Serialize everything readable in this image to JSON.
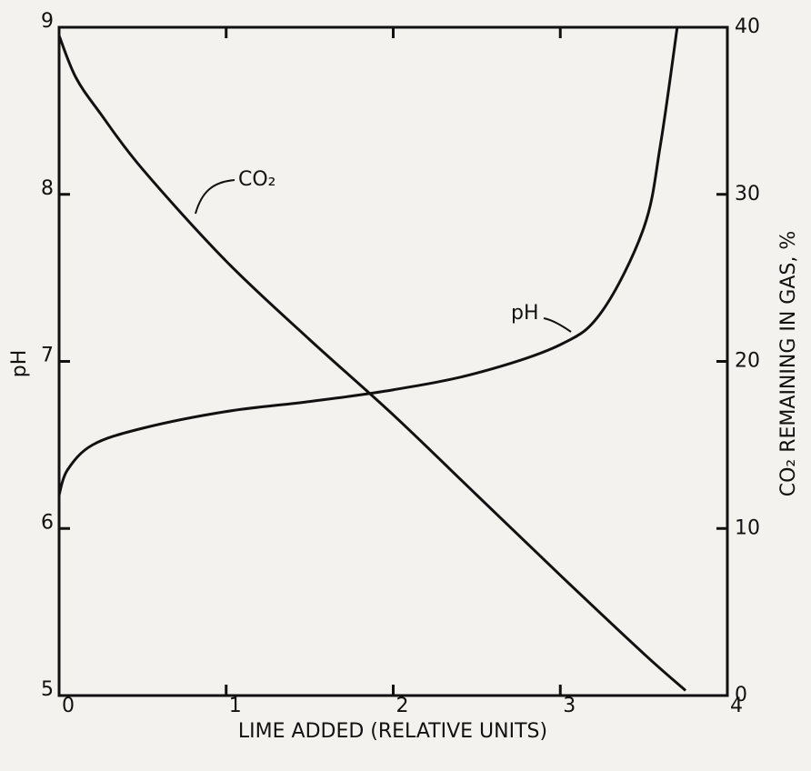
{
  "chart_data": {
    "type": "line",
    "xlabel": "LIME ADDED (RELATIVE UNITS)",
    "ylabel": "pH",
    "y2label": "CO₂ REMAINING IN GAS, %",
    "xlim": [
      0,
      4
    ],
    "xticks": [
      0,
      1,
      2,
      3,
      4
    ],
    "ylim": [
      5,
      9
    ],
    "yticks": [
      5,
      6,
      7,
      8,
      9
    ],
    "y2lim": [
      0,
      40
    ],
    "y2ticks": [
      0,
      10,
      20,
      30,
      40
    ],
    "series": [
      {
        "name": "CO₂",
        "color": "#111111",
        "axis": "y2",
        "x": [
          0,
          0.1,
          0.25,
          0.5,
          1,
          1.5,
          2,
          2.5,
          3,
          3.5,
          3.75
        ],
        "values": [
          39.5,
          37,
          34.8,
          31.5,
          26,
          21.3,
          16.8,
          12,
          7.2,
          2.5,
          0.3
        ]
      },
      {
        "name": "pH",
        "color": "#111111",
        "x": [
          0,
          0.05,
          0.2,
          0.5,
          1,
          1.5,
          2,
          2.5,
          3,
          3.25,
          3.5,
          3.6,
          3.7
        ],
        "values": [
          6.2,
          6.35,
          6.5,
          6.6,
          6.7,
          6.76,
          6.83,
          6.93,
          7.1,
          7.3,
          7.8,
          8.3,
          9.0
        ]
      }
    ]
  }
}
